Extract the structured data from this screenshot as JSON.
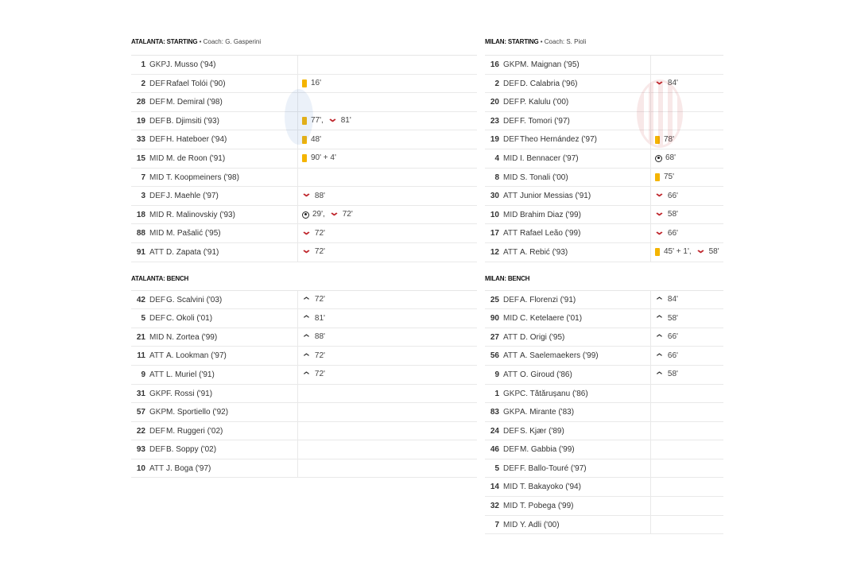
{
  "colors": {
    "yellow_card": "#f4b400",
    "sub_out": "#c0282e",
    "sub_in": "#333333"
  },
  "teams": [
    {
      "id": "atalanta",
      "starting_heading": "ATALANTA: STARTING",
      "coach": "• Coach: G. Gasperini",
      "bench_heading": "ATALANTA: BENCH",
      "starting": [
        {
          "num": "1",
          "pos": "GKP",
          "name": "J. Musso ('94)",
          "events": []
        },
        {
          "num": "2",
          "pos": "DEF",
          "name": "Rafael Tolói ('90)",
          "events": [
            {
              "type": "yellow-card",
              "text": "16'"
            }
          ]
        },
        {
          "num": "28",
          "pos": "DEF",
          "name": "M. Demiral ('98)",
          "events": []
        },
        {
          "num": "19",
          "pos": "DEF",
          "name": "B. Djimsiti ('93)",
          "events": [
            {
              "type": "yellow-card",
              "text": "77',"
            },
            {
              "type": "sub-out",
              "text": "81'"
            }
          ]
        },
        {
          "num": "33",
          "pos": "DEF",
          "name": "H. Hateboer ('94)",
          "events": [
            {
              "type": "yellow-card",
              "text": "48'"
            }
          ]
        },
        {
          "num": "15",
          "pos": "MID",
          "name": "M. de Roon ('91)",
          "events": [
            {
              "type": "yellow-card",
              "text": "90' + 4'"
            }
          ]
        },
        {
          "num": "7",
          "pos": "MID",
          "name": "T. Koopmeiners ('98)",
          "events": []
        },
        {
          "num": "3",
          "pos": "DEF",
          "name": "J. Maehle ('97)",
          "events": [
            {
              "type": "sub-out",
              "text": "88'"
            }
          ]
        },
        {
          "num": "18",
          "pos": "MID",
          "name": "R. Malinovskiy ('93)",
          "events": [
            {
              "type": "goal",
              "text": "29',"
            },
            {
              "type": "sub-out",
              "text": "72'"
            }
          ]
        },
        {
          "num": "88",
          "pos": "MID",
          "name": "M. Pašalić ('95)",
          "events": [
            {
              "type": "sub-out",
              "text": "72'"
            }
          ]
        },
        {
          "num": "91",
          "pos": "ATT",
          "name": "D. Zapata ('91)",
          "events": [
            {
              "type": "sub-out",
              "text": "72'"
            }
          ]
        }
      ],
      "bench": [
        {
          "num": "42",
          "pos": "DEF",
          "name": "G. Scalvini ('03)",
          "events": [
            {
              "type": "sub-in",
              "text": "72'"
            }
          ]
        },
        {
          "num": "5",
          "pos": "DEF",
          "name": "C. Okoli ('01)",
          "events": [
            {
              "type": "sub-in",
              "text": "81'"
            }
          ]
        },
        {
          "num": "21",
          "pos": "MID",
          "name": "N. Zortea ('99)",
          "events": [
            {
              "type": "sub-in",
              "text": "88'"
            }
          ]
        },
        {
          "num": "11",
          "pos": "ATT",
          "name": "A. Lookman ('97)",
          "events": [
            {
              "type": "sub-in",
              "text": "72'"
            }
          ]
        },
        {
          "num": "9",
          "pos": "ATT",
          "name": "L. Muriel ('91)",
          "events": [
            {
              "type": "sub-in",
              "text": "72'"
            }
          ]
        },
        {
          "num": "31",
          "pos": "GKP",
          "name": "F. Rossi ('91)",
          "events": []
        },
        {
          "num": "57",
          "pos": "GKP",
          "name": "M. Sportiello ('92)",
          "events": []
        },
        {
          "num": "22",
          "pos": "DEF",
          "name": "M. Ruggeri ('02)",
          "events": []
        },
        {
          "num": "93",
          "pos": "DEF",
          "name": "B. Soppy ('02)",
          "events": []
        },
        {
          "num": "10",
          "pos": "ATT",
          "name": "J. Boga ('97)",
          "events": []
        }
      ]
    },
    {
      "id": "milan",
      "starting_heading": "MILAN: STARTING",
      "coach": "• Coach: S. Pioli",
      "bench_heading": "MILAN: BENCH",
      "starting": [
        {
          "num": "16",
          "pos": "GKP",
          "name": "M. Maignan ('95)",
          "events": []
        },
        {
          "num": "2",
          "pos": "DEF",
          "name": "D. Calabria ('96)",
          "events": [
            {
              "type": "sub-out",
              "text": "84'"
            }
          ]
        },
        {
          "num": "20",
          "pos": "DEF",
          "name": "P. Kalulu ('00)",
          "events": []
        },
        {
          "num": "23",
          "pos": "DEF",
          "name": "F. Tomori ('97)",
          "events": []
        },
        {
          "num": "19",
          "pos": "DEF",
          "name": "Theo Hernández ('97)",
          "events": [
            {
              "type": "yellow-card",
              "text": "78'"
            }
          ]
        },
        {
          "num": "4",
          "pos": "MID",
          "name": "I. Bennacer ('97)",
          "events": [
            {
              "type": "goal",
              "text": "68'"
            }
          ]
        },
        {
          "num": "8",
          "pos": "MID",
          "name": "S. Tonali ('00)",
          "events": [
            {
              "type": "yellow-card",
              "text": "75'"
            }
          ]
        },
        {
          "num": "30",
          "pos": "ATT",
          "name": "Junior Messias ('91)",
          "events": [
            {
              "type": "sub-out",
              "text": "66'"
            }
          ]
        },
        {
          "num": "10",
          "pos": "MID",
          "name": "Brahim Diaz ('99)",
          "events": [
            {
              "type": "sub-out",
              "text": "58'"
            }
          ]
        },
        {
          "num": "17",
          "pos": "ATT",
          "name": "Rafael Leão ('99)",
          "events": [
            {
              "type": "sub-out",
              "text": "66'"
            }
          ]
        },
        {
          "num": "12",
          "pos": "ATT",
          "name": "A. Rebić ('93)",
          "events": [
            {
              "type": "yellow-card",
              "text": "45' + 1',"
            },
            {
              "type": "sub-out",
              "text": "58'"
            }
          ]
        }
      ],
      "bench": [
        {
          "num": "25",
          "pos": "DEF",
          "name": "A. Florenzi ('91)",
          "events": [
            {
              "type": "sub-in",
              "text": "84'"
            }
          ]
        },
        {
          "num": "90",
          "pos": "MID",
          "name": "C. Ketelaere ('01)",
          "events": [
            {
              "type": "sub-in",
              "text": "58'"
            }
          ]
        },
        {
          "num": "27",
          "pos": "ATT",
          "name": "D. Origi ('95)",
          "events": [
            {
              "type": "sub-in",
              "text": "66'"
            }
          ]
        },
        {
          "num": "56",
          "pos": "ATT",
          "name": "A. Saelemaekers ('99)",
          "events": [
            {
              "type": "sub-in",
              "text": "66'"
            }
          ]
        },
        {
          "num": "9",
          "pos": "ATT",
          "name": "O. Giroud ('86)",
          "events": [
            {
              "type": "sub-in",
              "text": "58'"
            }
          ]
        },
        {
          "num": "1",
          "pos": "GKP",
          "name": "C. Tătărușanu ('86)",
          "events": []
        },
        {
          "num": "83",
          "pos": "GKP",
          "name": "A. Mirante ('83)",
          "events": []
        },
        {
          "num": "24",
          "pos": "DEF",
          "name": "S. Kjær ('89)",
          "events": []
        },
        {
          "num": "46",
          "pos": "DEF",
          "name": "M. Gabbia ('99)",
          "events": []
        },
        {
          "num": "5",
          "pos": "DEF",
          "name": "F. Ballo-Touré ('97)",
          "events": []
        },
        {
          "num": "14",
          "pos": "MID",
          "name": "T. Bakayoko ('94)",
          "events": []
        },
        {
          "num": "32",
          "pos": "MID",
          "name": "T. Pobega ('99)",
          "events": []
        },
        {
          "num": "7",
          "pos": "MID",
          "name": "Y. Adli ('00)",
          "events": []
        }
      ]
    }
  ]
}
